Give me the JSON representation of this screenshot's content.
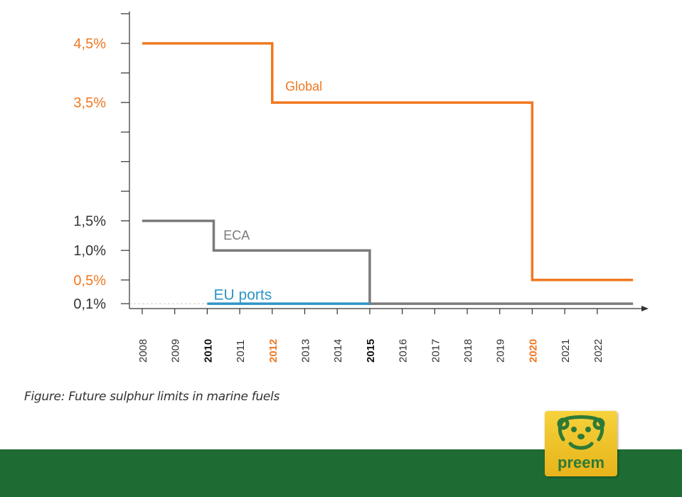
{
  "caption": "Figure: Future sulphur limits in marine fuels",
  "logo": {
    "text": "preem",
    "icon": "bear-face-icon"
  },
  "colors": {
    "global": "#f07820",
    "eca": "#7a7a7a",
    "eu_ports": "#2e95c6",
    "axis": "#333333",
    "footer": "#1f6b34",
    "logo_green": "#2d7a36"
  },
  "chart_data": {
    "type": "line",
    "step": true,
    "xlim": [
      2008,
      2023
    ],
    "ylim": [
      0,
      5.0
    ],
    "y_ticks": [
      {
        "value": 4.5,
        "label": "4,5%",
        "color": "#f07820"
      },
      {
        "value": 3.5,
        "label": "3,5%",
        "color": "#f07820"
      },
      {
        "value": 1.5,
        "label": "1,5%",
        "color": "#333333"
      },
      {
        "value": 1.0,
        "label": "1,0%",
        "color": "#333333"
      },
      {
        "value": 0.5,
        "label": "0,5%",
        "color": "#f07820"
      },
      {
        "value": 0.1,
        "label": "0,1%",
        "color": "#333333"
      }
    ],
    "y_minor_ticks": [
      5.0,
      4.0,
      3.0,
      2.5,
      2.0
    ],
    "x_ticks": [
      {
        "value": 2008,
        "label": "2008",
        "style": "normal"
      },
      {
        "value": 2009,
        "label": "2009",
        "style": "normal"
      },
      {
        "value": 2010,
        "label": "2010",
        "style": "bold"
      },
      {
        "value": 2011,
        "label": "2011",
        "style": "normal"
      },
      {
        "value": 2012,
        "label": "2012",
        "style": "orange"
      },
      {
        "value": 2013,
        "label": "2013",
        "style": "normal"
      },
      {
        "value": 2014,
        "label": "2014",
        "style": "normal"
      },
      {
        "value": 2015,
        "label": "2015",
        "style": "bold"
      },
      {
        "value": 2016,
        "label": "2016",
        "style": "normal"
      },
      {
        "value": 2017,
        "label": "2017",
        "style": "normal"
      },
      {
        "value": 2018,
        "label": "2018",
        "style": "normal"
      },
      {
        "value": 2019,
        "label": "2019",
        "style": "normal"
      },
      {
        "value": 2020,
        "label": "2020",
        "style": "orange"
      },
      {
        "value": 2021,
        "label": "2021",
        "style": "normal"
      },
      {
        "value": 2022,
        "label": "2022",
        "style": "normal"
      }
    ],
    "series": [
      {
        "name": "Global",
        "color": "#f07820",
        "points": [
          [
            2008,
            4.5
          ],
          [
            2012,
            4.5
          ],
          [
            2012,
            3.5
          ],
          [
            2020,
            3.5
          ],
          [
            2020,
            0.5
          ],
          [
            2023.1,
            0.5
          ]
        ],
        "label_at": [
          2012.4,
          3.7
        ]
      },
      {
        "name": "ECA",
        "color": "#7a7a7a",
        "points": [
          [
            2008,
            1.5
          ],
          [
            2010.2,
            1.5
          ],
          [
            2010.2,
            1.0
          ],
          [
            2015,
            1.0
          ],
          [
            2015,
            0.1
          ],
          [
            2023.1,
            0.1
          ]
        ],
        "label_at": [
          2010.5,
          1.18
        ]
      },
      {
        "name": "EU ports",
        "color": "#2e95c6",
        "points": [
          [
            2010,
            0.1
          ],
          [
            2015,
            0.1
          ]
        ],
        "label_at": [
          2010.2,
          0.17
        ]
      }
    ]
  }
}
